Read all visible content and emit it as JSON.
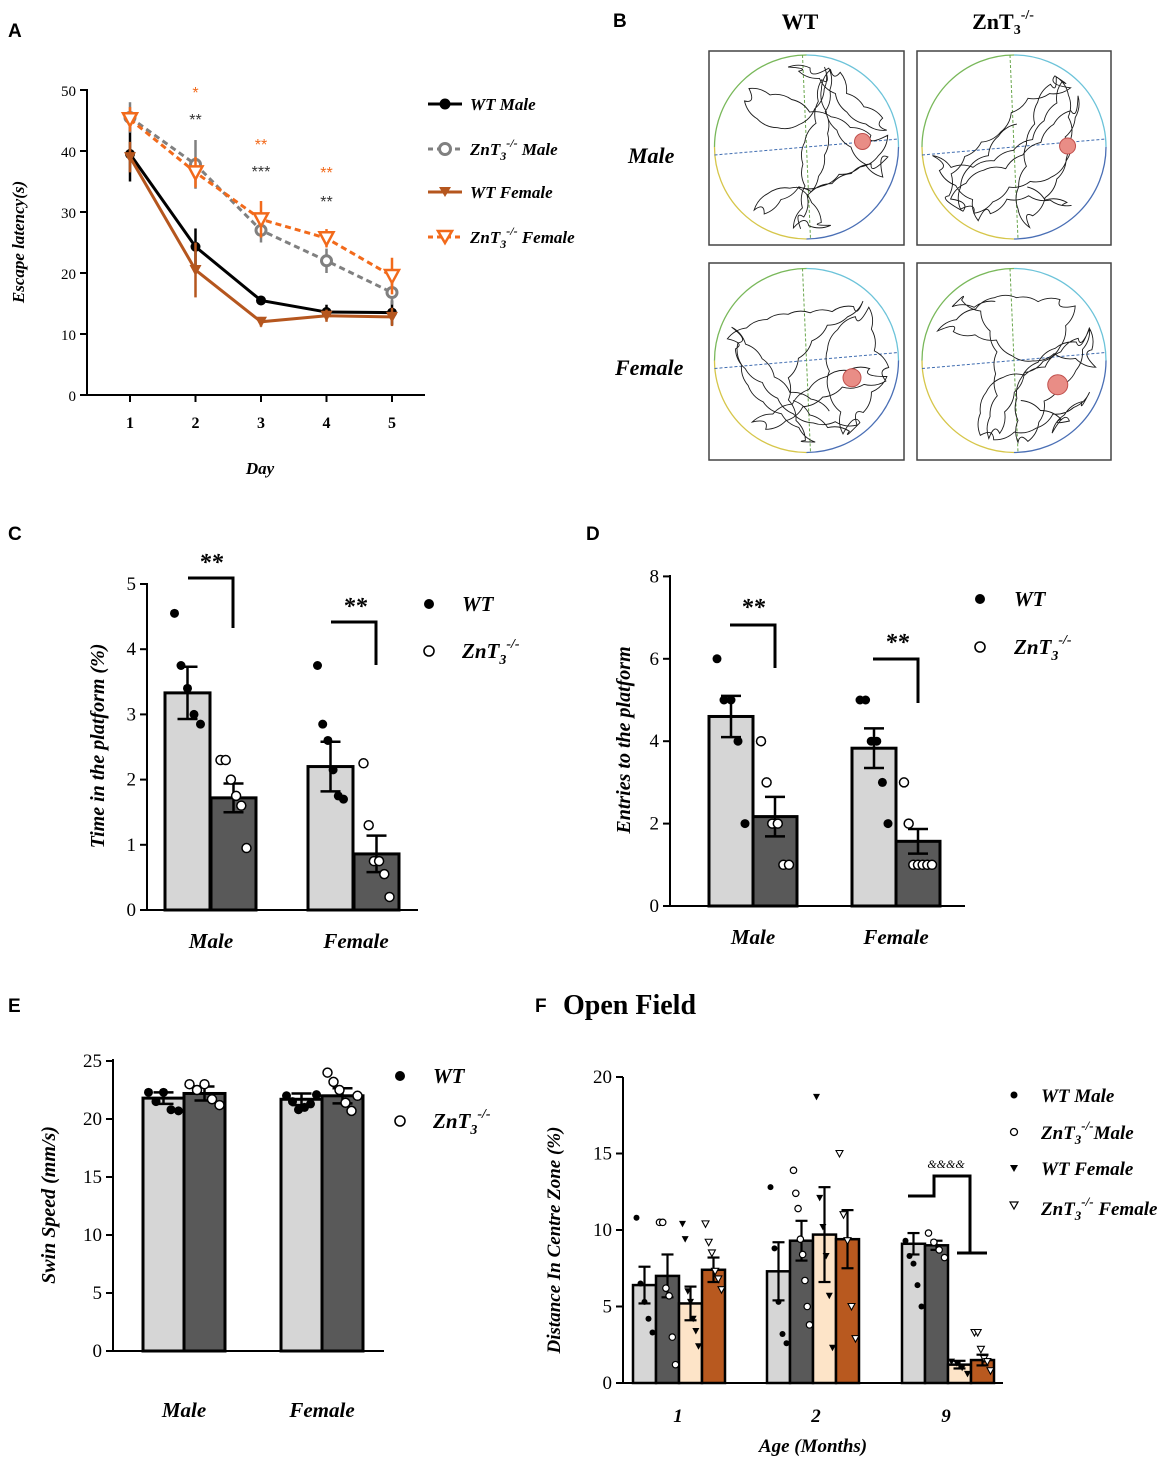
{
  "colors": {
    "wt": "#000000",
    "zn": "#808080",
    "wtf": "#b5561e",
    "znf": "#f26a1b",
    "bar_light": "#d6d6d6",
    "bar_dark": "#595959",
    "bar_cream": "#fde4c8",
    "bar_orange": "#b8591f"
  },
  "panels": {
    "A": "A",
    "B": "B",
    "C": "C",
    "D": "D",
    "E": "E",
    "F": "F",
    "F_title": "Open Field"
  },
  "legend_main": {
    "wt": "WT",
    "zn": "ZnT",
    "zn_sub": "3",
    "zn_sup": "-/-"
  },
  "legend_A": [
    {
      "base": "WT Male",
      "sub": "",
      "sup": "",
      "tail": ""
    },
    {
      "base": "ZnT",
      "sub": "3",
      "sup": "-/-",
      "tail": " Male"
    },
    {
      "base": "WT Female",
      "sub": "",
      "sup": "",
      "tail": ""
    },
    {
      "base": "ZnT",
      "sub": "3",
      "sup": "-/-",
      "tail": " Female"
    }
  ],
  "legend_F": [
    {
      "base": "WT Male",
      "sub": "",
      "sup": "",
      "tail": ""
    },
    {
      "base": "ZnT",
      "sub": "3",
      "sup": "-/-",
      "tail": "Male"
    },
    {
      "base": "WT Female",
      "sub": "",
      "sup": "",
      "tail": ""
    },
    {
      "base": "ZnT",
      "sub": "3",
      "sup": "-/-",
      "tail": " Female"
    }
  ],
  "panel_B": {
    "col_wt": "WT",
    "col_zn": "ZnT",
    "col_zn_sub": "3",
    "col_zn_sup": "-/-",
    "row_male": "Male",
    "row_female": "Female"
  },
  "chart_data": [
    {
      "panel": "A",
      "type": "line",
      "xlabel": "Day",
      "ylabel": "Escape latency(s)",
      "ylim": [
        0,
        50
      ],
      "yticks": [
        "0",
        "10",
        "20",
        "30",
        "40",
        "50"
      ],
      "x": [
        1,
        2,
        3,
        4,
        5
      ],
      "series": [
        {
          "name": "WT Male",
          "values": [
            39.5,
            24.3,
            15.5,
            13.6,
            13.5
          ],
          "errors": [
            4.5,
            3.0,
            0.6,
            1.2,
            2.0
          ]
        },
        {
          "name": "ZnT3-/- Male",
          "values": [
            45.5,
            37.8,
            27.0,
            22.0,
            16.8
          ],
          "errors": [
            2.5,
            4.0,
            2.0,
            2.0,
            2.0
          ]
        },
        {
          "name": "WT Female",
          "values": [
            39.0,
            20.5,
            12.0,
            13.0,
            12.8
          ],
          "errors": [
            2.5,
            4.5,
            0.8,
            1.0,
            1.5
          ]
        },
        {
          "name": "ZnT3-/- Female",
          "values": [
            45.2,
            36.5,
            28.8,
            25.7,
            19.5
          ],
          "errors": [
            2.0,
            2.5,
            3.0,
            1.5,
            3.0
          ]
        }
      ],
      "annotations": [
        {
          "x": 2,
          "orange": "*",
          "black": "**"
        },
        {
          "x": 3,
          "orange": "**",
          "black": "***"
        },
        {
          "x": 4,
          "orange": "**",
          "black": "**"
        }
      ]
    },
    {
      "panel": "C",
      "type": "bar",
      "ylabel": "Time in the platform (%)",
      "ylim": [
        0,
        5
      ],
      "yticks": [
        "0",
        "1",
        "2",
        "3",
        "4",
        "5"
      ],
      "categories": [
        "Male",
        "Female"
      ],
      "series": [
        {
          "name": "WT",
          "values": [
            3.33,
            2.2
          ],
          "errors": [
            0.4,
            0.38
          ],
          "points": [
            [
              4.55,
              3.75,
              3.4,
              3.0,
              2.85
            ],
            [
              3.75,
              2.85,
              2.6,
              2.15,
              1.75,
              1.7
            ]
          ]
        },
        {
          "name": "ZnT3-/-",
          "values": [
            1.72,
            0.86
          ],
          "errors": [
            0.22,
            0.28
          ],
          "points": [
            [
              2.3,
              2.3,
              2.0,
              1.75,
              1.6,
              0.95
            ],
            [
              2.25,
              1.3,
              0.75,
              0.75,
              0.55,
              0.2
            ]
          ]
        }
      ],
      "significance": [
        "**",
        "**"
      ]
    },
    {
      "panel": "D",
      "type": "bar",
      "ylabel": "Entries to the platform",
      "ylim": [
        0,
        8
      ],
      "yticks": [
        "0",
        "2",
        "4",
        "6",
        "8"
      ],
      "categories": [
        "Male",
        "Female"
      ],
      "series": [
        {
          "name": "WT",
          "values": [
            4.6,
            3.83
          ],
          "errors": [
            0.5,
            0.48
          ],
          "points": [
            [
              6,
              5,
              5,
              4,
              2
            ],
            [
              5,
              5,
              4,
              4,
              3,
              2
            ]
          ]
        },
        {
          "name": "ZnT3-/-",
          "values": [
            2.17,
            1.57
          ],
          "errors": [
            0.48,
            0.3
          ],
          "points": [
            [
              4,
              3,
              2,
              2,
              1,
              1
            ],
            [
              3,
              2,
              1,
              1,
              1,
              1,
              1
            ]
          ]
        }
      ],
      "significance": [
        "**",
        "**"
      ]
    },
    {
      "panel": "E",
      "type": "bar",
      "ylabel": "Swin Speed (mm/s)",
      "ylim": [
        0,
        25
      ],
      "yticks": [
        "0",
        "5",
        "10",
        "15",
        "20",
        "25"
      ],
      "categories": [
        "Male",
        "Female"
      ],
      "series": [
        {
          "name": "WT",
          "values": [
            21.8,
            21.7
          ],
          "errors": [
            0.5,
            0.5
          ],
          "points": [
            [
              22.3,
              21.5,
              22.3,
              20.8,
              20.7
            ],
            [
              22.0,
              21.5,
              20.8,
              21.0,
              21.3,
              22.1
            ]
          ]
        },
        {
          "name": "ZnT3-/-",
          "values": [
            22.2,
            22.0
          ],
          "errors": [
            0.6,
            0.65
          ],
          "points": [
            [
              23.0,
              22.5,
              23.0,
              21.7,
              21.2
            ],
            [
              24.0,
              23.2,
              22.5,
              21.4,
              20.7,
              22.0
            ]
          ]
        }
      ]
    },
    {
      "panel": "F",
      "type": "bar",
      "title": "Open Field",
      "xlabel": "Age (Months)",
      "ylabel": "Distance In Centre Zone (%)",
      "ylim": [
        0,
        20
      ],
      "yticks": [
        "0",
        "5",
        "10",
        "15",
        "20"
      ],
      "categories": [
        "1",
        "2",
        "9"
      ],
      "series": [
        {
          "name": "WT Male",
          "values": [
            6.4,
            7.3,
            9.1
          ],
          "errors": [
            1.2,
            1.9,
            0.7
          ],
          "points": [
            [
              10.8,
              6.5,
              5.3,
              4.2,
              3.3
            ],
            [
              12.8,
              8.8,
              5.3,
              3.2,
              2.6
            ],
            [
              9.3,
              8.3,
              7.8,
              6.4,
              5.0
            ]
          ]
        },
        {
          "name": "ZnT3-/- Male",
          "values": [
            7.0,
            9.3,
            9.0
          ],
          "errors": [
            1.4,
            1.3,
            0.3
          ],
          "points": [
            [
              10.5,
              10.5,
              6.2,
              5.7,
              3.0,
              1.2
            ],
            [
              13.9,
              12.4,
              11.4,
              9.4,
              8.4,
              6.7,
              5.0,
              3.8
            ],
            [
              9.8,
              9.2,
              8.7,
              8.2
            ]
          ]
        },
        {
          "name": "WT Female",
          "values": [
            5.2,
            9.7,
            1.2
          ],
          "errors": [
            1.1,
            3.1,
            0.25
          ],
          "points": [
            [
              10.4,
              9.4,
              6.0,
              5.3,
              4.2,
              3.4,
              2.4
            ],
            [
              18.7,
              12.1,
              10.2,
              8.3,
              5.7,
              2.3
            ],
            [
              1.4,
              1.3,
              1.0,
              0.6
            ]
          ]
        },
        {
          "name": "ZnT3-/- Female",
          "values": [
            7.4,
            9.4,
            1.5
          ],
          "errors": [
            0.8,
            1.9,
            0.35
          ],
          "points": [
            [
              10.4,
              9.2,
              8.5,
              7.3,
              6.8,
              6.1
            ],
            [
              15.0,
              11.0,
              9.3,
              5.0,
              2.9
            ],
            [
              3.3,
              3.3,
              2.2,
              1.6,
              1.4,
              0.8
            ]
          ]
        }
      ],
      "annotation": "&&&&"
    }
  ]
}
